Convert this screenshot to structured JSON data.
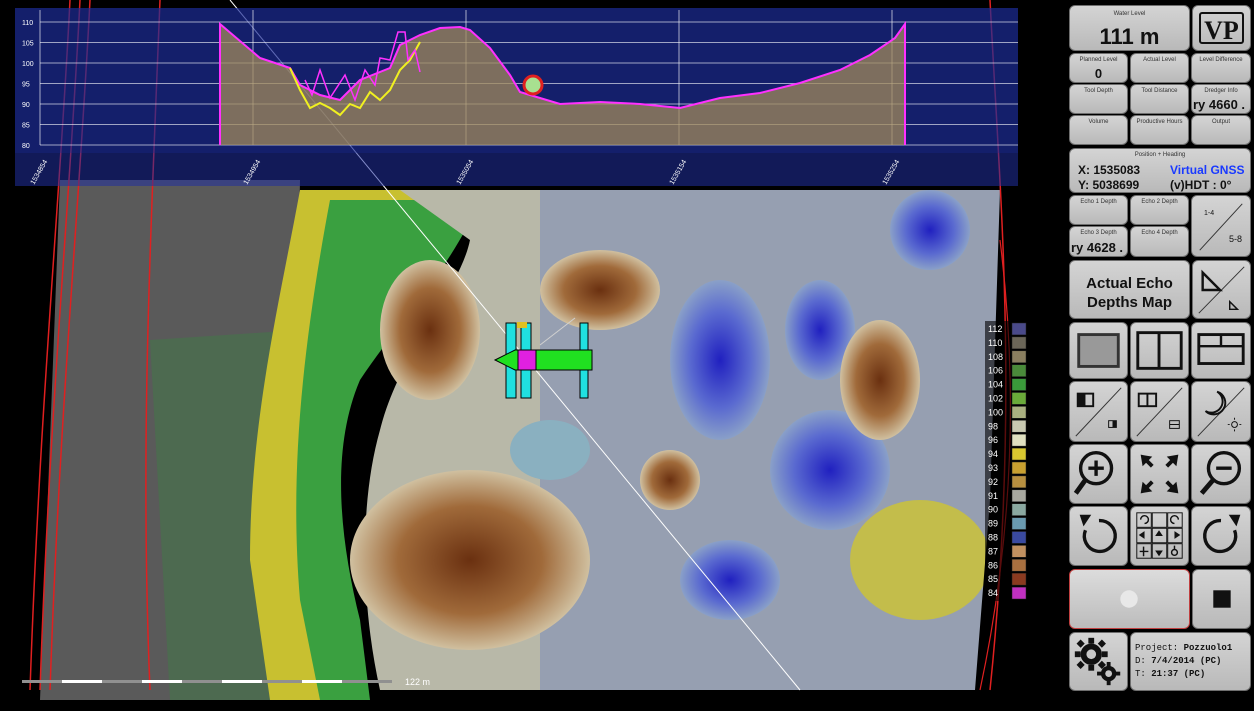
{
  "profile": {
    "y_ticks": [
      "110",
      "105",
      "100",
      "95",
      "90",
      "85",
      "80"
    ],
    "x_ticks": [
      "1534854",
      "1534954",
      "1535054",
      "1535154",
      "1535254"
    ]
  },
  "scale_bar": {
    "label": "122 m"
  },
  "legend": {
    "values": [
      "112",
      "110",
      "108",
      "106",
      "104",
      "102",
      "100",
      "98",
      "96",
      "94",
      "93",
      "92",
      "91",
      "90",
      "89",
      "88",
      "87",
      "86",
      "85",
      "84"
    ],
    "colors": [
      "#4a4a8a",
      "#6b6658",
      "#8a7f60",
      "#4a8a3a",
      "#3a9a3a",
      "#6aaa3a",
      "#aab080",
      "#c8c8b0",
      "#e0e0c0",
      "#d8c830",
      "#c8a030",
      "#b89040",
      "#a8a8a0",
      "#8aa8a0",
      "#6a9ab0",
      "#3a4aa0",
      "#c09060",
      "#a87040",
      "#8a3a20",
      "#c030c0"
    ]
  },
  "panel": {
    "water_level": {
      "label": "Water Level",
      "value": "111 m"
    },
    "logo": {
      "text": "VP"
    },
    "planned_level": {
      "label": "Planned Level",
      "value": "0"
    },
    "actual_level": {
      "label": "Actual Level",
      "value": ""
    },
    "level_difference": {
      "label": "Level Difference",
      "value": ""
    },
    "tool_depth": {
      "label": "Tool Depth",
      "value": ""
    },
    "tool_distance": {
      "label": "Tool Distance",
      "value": ""
    },
    "dredger_info": {
      "label": "Dredger Info",
      "value": "ry 4660 ."
    },
    "volume": {
      "label": "Volume",
      "value": ""
    },
    "productive_hours": {
      "label": "Productive Hours",
      "value": ""
    },
    "output": {
      "label": "Output",
      "value": ""
    },
    "position": {
      "label": "Position + Heading",
      "x": "X: 1535083",
      "y": "Y: 5038699",
      "source": "Virtual GNSS",
      "heading": "(v)HDT : 0°"
    },
    "echo1": {
      "label": "Echo 1 Depth",
      "value": ""
    },
    "echo2": {
      "label": "Echo 2 Depth",
      "value": ""
    },
    "echo3": {
      "label": "Echo 3 Depth",
      "value": "ry 4628 ."
    },
    "echo4": {
      "label": "Echo 4 Depth",
      "value": ""
    },
    "echo_pages": {
      "top": "1-4",
      "bottom": "5-8"
    },
    "map_mode": {
      "line1": "Actual Echo",
      "line2": "Depths Map"
    },
    "status": {
      "project_label": "Project:",
      "project_value": "Pozzuolo1",
      "date_label": "D:",
      "date_value": "7/4/2014 (PC)",
      "time_label": "T:",
      "time_value": "21:37 (PC)"
    }
  }
}
